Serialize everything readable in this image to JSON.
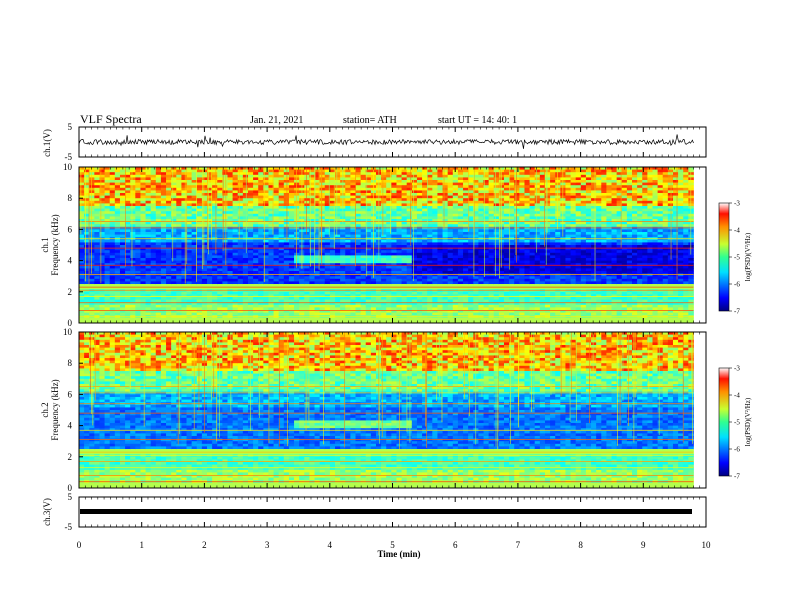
{
  "header": {
    "title": "VLF Spectra",
    "date": "Jan. 21, 2021",
    "station": "station= ATH",
    "start": "start UT =  14: 40: 1"
  },
  "chart_data": [
    {
      "id": "ch1-voltage",
      "type": "line",
      "ylabel": "ch.1(V)",
      "ylim": [
        -5,
        5
      ],
      "yticks": [
        "5",
        "-5"
      ],
      "xlim": [
        0,
        10
      ],
      "description_level_V": 0,
      "color": "#000000"
    },
    {
      "id": "ch1-spectrogram",
      "type": "heatmap",
      "ylabel": "ch.1\nFrequency (kHz)",
      "ylim": [
        0,
        10
      ],
      "yticks": [
        "0",
        "2",
        "4",
        "6",
        "8",
        "10"
      ],
      "xlim": [
        0,
        9.8
      ],
      "colorbar": {
        "label": "log(PSD)(V²/Hz)",
        "range": [
          -7,
          -3
        ],
        "ticks": [
          "-3",
          "-4",
          "-5",
          "-6",
          "-7"
        ]
      }
    },
    {
      "id": "ch2-spectrogram",
      "type": "heatmap",
      "ylabel": "ch.2\nFrequency (kHz)",
      "ylim": [
        0,
        10
      ],
      "yticks": [
        "0",
        "2",
        "4",
        "6",
        "8",
        "10"
      ],
      "xlim": [
        0,
        9.8
      ],
      "colorbar": {
        "label": "log(PSD)(V²/Hz)",
        "range": [
          -7,
          -3
        ],
        "ticks": [
          "-3",
          "-4",
          "-5",
          "-6",
          "-7"
        ]
      }
    },
    {
      "id": "ch3-voltage",
      "type": "line",
      "ylabel": "ch.3(V)",
      "ylim": [
        -5,
        5
      ],
      "yticks": [
        "5",
        "-5"
      ],
      "xlim": [
        0,
        10
      ],
      "color": "#000000"
    }
  ],
  "xaxis": {
    "label": "Time (min)",
    "ticks": [
      "0",
      "1",
      "2",
      "3",
      "4",
      "5",
      "6",
      "7",
      "8",
      "9",
      "10"
    ]
  },
  "labels": {
    "ch1_v": "ch.1(V)",
    "ch1_freq_a": "ch.1",
    "ch1_freq_b": "Frequency (kHz)",
    "ch2_freq_a": "ch.2",
    "ch2_freq_b": "Frequency (kHz)",
    "ch3_v": "ch.3(V)",
    "cb_label": "log(PSD)(V²/Hz)"
  }
}
